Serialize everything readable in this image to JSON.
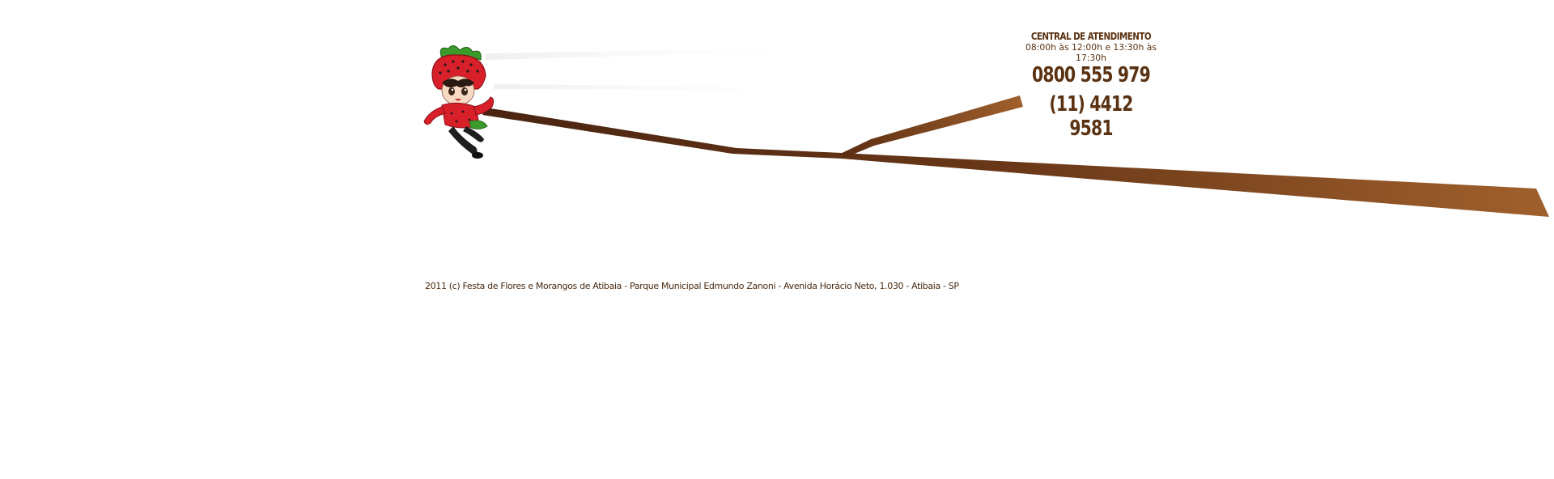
{
  "contact": {
    "title": "CENTRAL DE ATENDIMENTO",
    "hours": "08:00h às 12:00h e 13:30h às 17:30h",
    "phone_1": "0800 555 979",
    "phone_2": "(11) 4412 9581"
  },
  "footer": {
    "text": "2011 (c) Festa de Flores e Morangos de Atibaia - Parque Municipal Edmundo Zanoni - Avenida Horácio Neto, 1.030 - Atibaia - SP"
  },
  "mascot": {
    "icon": "strawberry-mascot-icon"
  },
  "colors": {
    "branch_dark": "#4a2410",
    "branch_light": "#a0602c",
    "text_brown": "#5a3212",
    "strawberry_red": "#d8202a",
    "leaf_green": "#3a9a2a"
  }
}
